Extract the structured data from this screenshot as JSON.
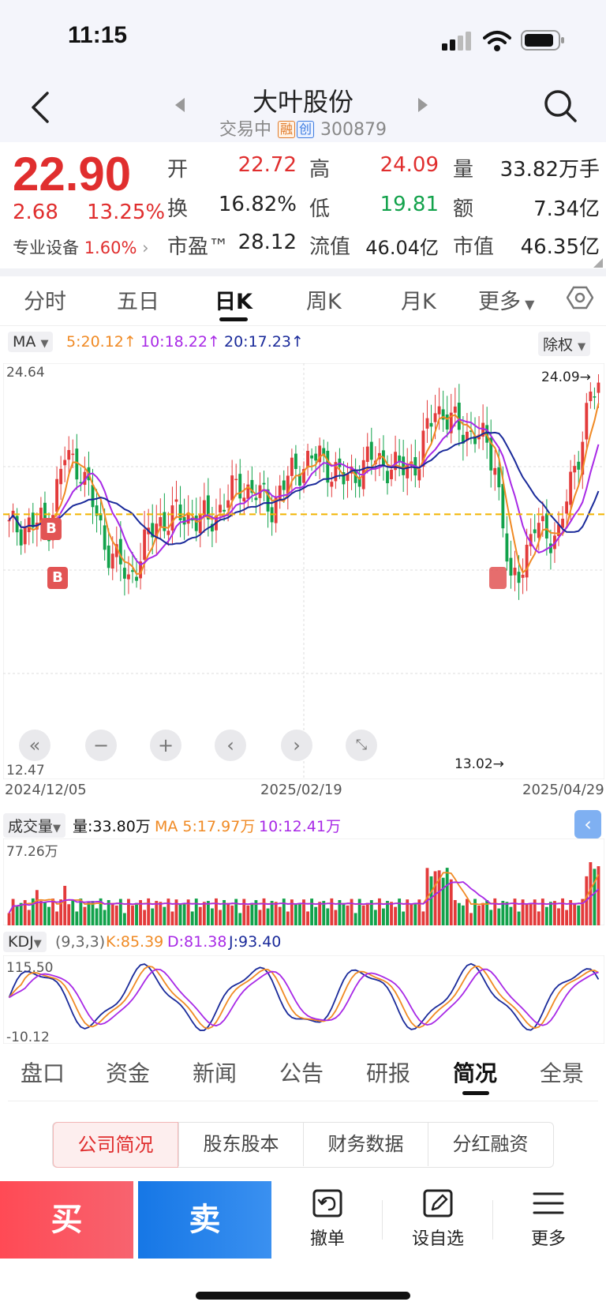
{
  "status": {
    "time": "11:15"
  },
  "header": {
    "title": "大叶股份",
    "status": "交易中",
    "tag_margin": "融",
    "tag_growth": "创",
    "code": "300879"
  },
  "quote": {
    "price": "22.90",
    "change": "2.68",
    "change_pct": "13.25%",
    "sector": "专业设备",
    "sector_pct": "1.60%",
    "open_label": "开",
    "open": "22.72",
    "high_label": "高",
    "high": "24.09",
    "volume_label": "量",
    "volume": "33.82万手",
    "turnover_label": "换",
    "turnover": "16.82%",
    "low_label": "低",
    "low": "19.81",
    "amount_label": "额",
    "amount": "7.34亿",
    "pe_label": "市盈™",
    "pe": "28.12",
    "float_label": "流值",
    "float_value": "46.04亿",
    "mcap_label": "市值",
    "mcap": "46.35亿"
  },
  "tabs": [
    {
      "label": "分时"
    },
    {
      "label": "五日"
    },
    {
      "label": "日K"
    },
    {
      "label": "周K"
    },
    {
      "label": "月K"
    },
    {
      "label": "更多"
    }
  ],
  "ma": {
    "label": "MA",
    "ma5": "5:20.12",
    "ma10": "10:18.22",
    "ma20": "20:17.23",
    "adjust": "除权"
  },
  "chart_data": {
    "type": "candlestick",
    "y_max_label": "24.64",
    "y_min_label": "12.47",
    "ylim": [
      12.47,
      24.64
    ],
    "high_annotation": "24.09",
    "low_annotation": "13.02",
    "x_labels": [
      "2024/12/05",
      "2025/02/19",
      "2025/04/29"
    ],
    "buy_marks": [
      "B",
      "B"
    ],
    "reference_price": 20.22,
    "colors": {
      "up": "#e33b3b",
      "down": "#12a24b",
      "ma5": "#f08a24",
      "ma10": "#a829e6",
      "ma20": "#1a2a9a"
    },
    "volume": {
      "label": "成交量",
      "value": "量:33.80万",
      "ma5": "MA 5:17.97万",
      "ma10": "10:12.41万",
      "max_label": "77.26万"
    },
    "kdj": {
      "label": "KDJ",
      "params": "(9,3,3)",
      "k": "K:85.39",
      "d": "D:81.38",
      "j": "J:93.40",
      "max_label": "115.50",
      "min_label": "-10.12"
    }
  },
  "bottom_tabs": [
    {
      "label": "盘口"
    },
    {
      "label": "资金"
    },
    {
      "label": "新闻"
    },
    {
      "label": "公告"
    },
    {
      "label": "研报"
    },
    {
      "label": "简况"
    },
    {
      "label": "全景"
    }
  ],
  "sub_tabs": [
    {
      "label": "公司简况"
    },
    {
      "label": "股东股本"
    },
    {
      "label": "财务数据"
    },
    {
      "label": "分红融资"
    }
  ],
  "actions": {
    "buy": "买",
    "sell": "卖",
    "cancel": "撤单",
    "watch": "设自选",
    "more": "更多"
  }
}
